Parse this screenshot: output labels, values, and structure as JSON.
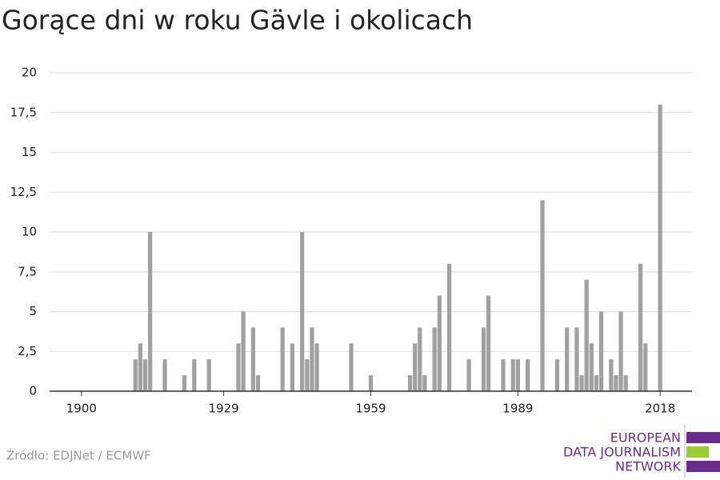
{
  "chart_data": {
    "type": "bar",
    "title": "Gorące dni w roku Gävle i okolicach",
    "x": [
      1911,
      1912,
      1913,
      1914,
      1917,
      1921,
      1923,
      1926,
      1932,
      1933,
      1935,
      1936,
      1941,
      1943,
      1945,
      1946,
      1947,
      1948,
      1955,
      1959,
      1967,
      1968,
      1969,
      1970,
      1972,
      1973,
      1975,
      1979,
      1982,
      1983,
      1986,
      1988,
      1989,
      1991,
      1994,
      1997,
      1999,
      2001,
      2002,
      2003,
      2004,
      2005,
      2006,
      2008,
      2009,
      2010,
      2011,
      2014,
      2015,
      2018
    ],
    "values": [
      2,
      3,
      2,
      10,
      2,
      1,
      2,
      2,
      3,
      5,
      4,
      1,
      4,
      3,
      10,
      2,
      4,
      3,
      3,
      1,
      1,
      3,
      4,
      1,
      4,
      6,
      8,
      2,
      4,
      6,
      2,
      2,
      2,
      2,
      12,
      2,
      4,
      4,
      1,
      7,
      3,
      1,
      5,
      2,
      1,
      5,
      1,
      8,
      3,
      18
    ],
    "color": "#a0a0a0",
    "xlim": [
      1893.5,
      2024.5
    ],
    "xticks": [
      1900,
      1929,
      1959,
      1989,
      2018
    ],
    "ylim": [
      0,
      20
    ],
    "yticks": [
      0,
      {
        "value": 2.5,
        "label": "2,5"
      },
      5,
      {
        "value": 7.5,
        "label": "7,5"
      },
      10,
      {
        "value": 12.5,
        "label": "12,5"
      },
      15,
      {
        "value": 17.5,
        "label": "17,5"
      },
      20
    ],
    "grid": true
  },
  "source": "Źródło: EDJNet / ECMWF",
  "logo": [
    "EUROPEAN",
    "DATA JOURNALISM",
    "NETWORK"
  ]
}
